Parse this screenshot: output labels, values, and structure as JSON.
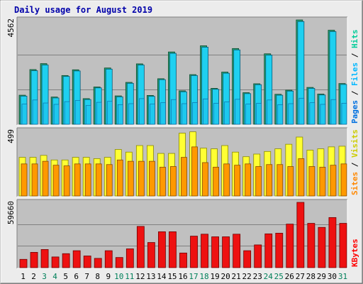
{
  "title": "Daily usage for August 2019",
  "colors": {
    "title": "#0000aa",
    "hits": "#00cc99",
    "hits_bar": "#27a070",
    "files": "#00b7ff",
    "files_bar": "#1fd0f0",
    "pages": "#0070e0",
    "visits": "#cccc00",
    "visits_bar": "#ffff33",
    "sites": "#ff8800",
    "sites_bar": "#ff9900",
    "kbytes": "#ff0000",
    "kbytes_bar": "#ee1111",
    "weekend_day": "#00805a",
    "weekday": "#000000",
    "panel_bg": "#c0c0c0",
    "gridline": "#808080"
  },
  "chart_data": [
    {
      "type": "bar",
      "name": "hits-files-pages",
      "ymax_label": "4562",
      "ylim": [
        0,
        4562
      ],
      "legend": [
        "Pages",
        "Files",
        "Hits"
      ],
      "gridlines": [
        1520,
        3040
      ],
      "categories": [
        "1",
        "2",
        "3",
        "4",
        "5",
        "6",
        "7",
        "8",
        "9",
        "10",
        "11",
        "12",
        "13",
        "14",
        "15",
        "16",
        "17",
        "18",
        "19",
        "20",
        "21",
        "22",
        "23",
        "24",
        "25",
        "26",
        "27",
        "28",
        "29",
        "30",
        "31"
      ],
      "series": [
        {
          "name": "Hits",
          "values": [
            1270,
            2390,
            2650,
            1190,
            2130,
            2380,
            1120,
            1630,
            2460,
            1240,
            1830,
            2640,
            1260,
            1990,
            3160,
            1460,
            2170,
            3430,
            1570,
            2280,
            3310,
            1380,
            1770,
            3080,
            1310,
            1490,
            4560,
            1610,
            1320,
            4110,
            1780
          ]
        },
        {
          "name": "Files",
          "values": [
            1230,
            2340,
            2590,
            1150,
            2090,
            2330,
            1080,
            1590,
            2410,
            1200,
            1790,
            2590,
            1220,
            1950,
            3100,
            1420,
            2130,
            3370,
            1530,
            2230,
            3250,
            1340,
            1730,
            3020,
            1270,
            1450,
            4490,
            1570,
            1280,
            4050,
            1740
          ]
        },
        {
          "name": "Pages",
          "values": [
            880,
            1060,
            930,
            870,
            990,
            1040,
            820,
            960,
            1000,
            860,
            900,
            1120,
            880,
            940,
            1080,
            900,
            950,
            1110,
            920,
            980,
            1090,
            880,
            920,
            1060,
            860,
            900,
            1140,
            940,
            870,
            1080,
            920
          ]
        }
      ]
    },
    {
      "type": "bar",
      "name": "visits-sites",
      "ymax_label": "499",
      "ylim": [
        0,
        499
      ],
      "legend": [
        "Sites",
        "Visits"
      ],
      "categories": [
        "1",
        "2",
        "3",
        "4",
        "5",
        "6",
        "7",
        "8",
        "9",
        "10",
        "11",
        "12",
        "13",
        "14",
        "15",
        "16",
        "17",
        "18",
        "19",
        "20",
        "21",
        "22",
        "23",
        "24",
        "25",
        "26",
        "27",
        "28",
        "29",
        "30",
        "31"
      ],
      "series": [
        {
          "name": "Visits",
          "values": [
            295,
            295,
            310,
            275,
            275,
            295,
            295,
            285,
            295,
            355,
            335,
            385,
            385,
            325,
            325,
            480,
            490,
            365,
            360,
            385,
            335,
            300,
            320,
            340,
            360,
            395,
            450,
            350,
            360,
            375,
            380
          ]
        },
        {
          "name": "Sites",
          "values": [
            245,
            245,
            265,
            235,
            230,
            245,
            245,
            245,
            240,
            275,
            265,
            265,
            265,
            220,
            225,
            295,
            375,
            255,
            220,
            245,
            235,
            245,
            225,
            240,
            240,
            225,
            285,
            225,
            220,
            235,
            245
          ]
        }
      ]
    },
    {
      "type": "bar",
      "name": "kbytes",
      "ymax_label": "59660",
      "ylim": [
        0,
        59660
      ],
      "legend": [
        "KBytes"
      ],
      "gridlines": [
        19887,
        39773
      ],
      "categories": [
        "1",
        "2",
        "3",
        "4",
        "5",
        "6",
        "7",
        "8",
        "9",
        "10",
        "11",
        "12",
        "13",
        "14",
        "15",
        "16",
        "17",
        "18",
        "19",
        "20",
        "21",
        "22",
        "23",
        "24",
        "25",
        "26",
        "27",
        "28",
        "29",
        "30",
        "31"
      ],
      "series": [
        {
          "name": "KBytes",
          "values": [
            7600,
            14000,
            16600,
            9800,
            12800,
            15500,
            10700,
            8500,
            15500,
            9300,
            17200,
            37700,
            23000,
            32800,
            32800,
            13400,
            28800,
            30600,
            28200,
            28200,
            30600,
            15500,
            20800,
            30900,
            31500,
            39800,
            59660,
            40500,
            36800,
            45800,
            40500
          ]
        }
      ]
    }
  ],
  "weekend_days": [
    "3",
    "4",
    "10",
    "11",
    "17",
    "18",
    "24",
    "25",
    "31"
  ]
}
